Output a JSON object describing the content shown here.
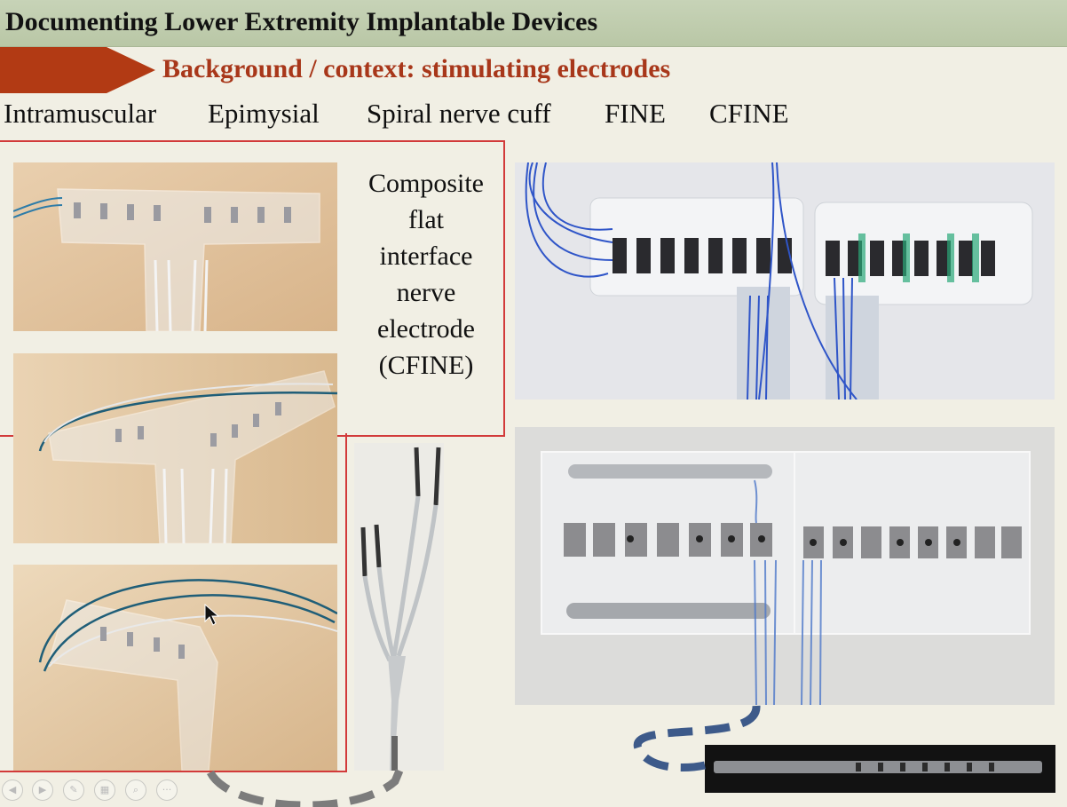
{
  "slide": {
    "title": "Documenting Lower Extremity Implantable Devices",
    "subtitle": "Background / context: stimulating electrodes",
    "electrode_types": [
      "Intramuscular",
      "Epimysial",
      "Spiral nerve cuff",
      "FINE",
      "CFINE"
    ],
    "caption_lines": [
      "Composite",
      "flat",
      "interface",
      "nerve",
      "electrode",
      "(CFINE)"
    ]
  },
  "colors": {
    "title_bar": "#c0cdb0",
    "accent_arrow": "#b23a14",
    "subtitle_text": "#a8371a",
    "highlight_box": "#d23a3a",
    "connector_gray": "#7c7c7c",
    "connector_blue": "#3d5a8a"
  },
  "images": [
    "photo-intramuscular-electrode-top",
    "photo-intramuscular-electrode-side",
    "photo-intramuscular-electrode-angle",
    "photo-lead-connectors",
    "photo-cfine-contacts-blue-wires",
    "photo-cfine-metal-contacts",
    "photo-cfine-strip-dark"
  ],
  "controls": [
    "prev-icon",
    "next-icon",
    "pen-icon",
    "slides-icon",
    "zoom-icon",
    "more-icon"
  ]
}
